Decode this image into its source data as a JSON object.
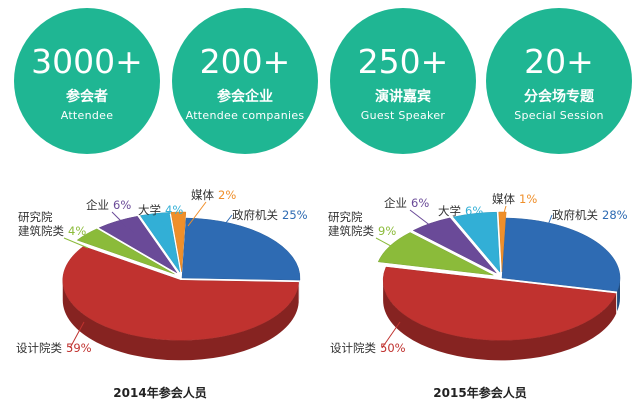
{
  "stats": [
    {
      "number": "3000+",
      "label_cn": "参会者",
      "label_en": "Attendee"
    },
    {
      "number": "200+",
      "label_cn": "参会企业",
      "label_en": "Attendee  companies"
    },
    {
      "number": "250+",
      "label_cn": "演讲嘉宾",
      "label_en": "Guest  Speaker"
    },
    {
      "number": "20+",
      "label_cn": "分会场专题",
      "label_en": "Special  Session"
    }
  ],
  "colors": {
    "circle": "#1fb693",
    "gov": "#2e6bb3",
    "design": "#c0322f",
    "research": "#8bbb3a",
    "enterprise": "#6a4a98",
    "university": "#32afd6",
    "media": "#ef8f2a"
  },
  "chart_data": [
    {
      "type": "pie",
      "title": "2014年参会人员",
      "slices": [
        {
          "label": "政府机关",
          "value": 25,
          "value_label": "25%"
        },
        {
          "label": "设计院类",
          "value": 59,
          "value_label": "59%"
        },
        {
          "label": "研究院 建筑院类",
          "label_line1": "研究院",
          "label_line2": "建筑院类",
          "value": 4,
          "value_label": "4%"
        },
        {
          "label": "企业",
          "value": 6,
          "value_label": "6%"
        },
        {
          "label": "大学",
          "value": 4,
          "value_label": "4%"
        },
        {
          "label": "媒体",
          "value": 2,
          "value_label": "2%"
        }
      ]
    },
    {
      "type": "pie",
      "title": "2015年参会人员",
      "slices": [
        {
          "label": "政府机关",
          "value": 28,
          "value_label": "28%"
        },
        {
          "label": "设计院类",
          "value": 50,
          "value_label": "50%"
        },
        {
          "label": "研究院 建筑院类",
          "label_line1": "研究院",
          "label_line2": "建筑院类",
          "value": 9,
          "value_label": "9%"
        },
        {
          "label": "企业",
          "value": 6,
          "value_label": "6%"
        },
        {
          "label": "大学",
          "value": 6,
          "value_label": "6%"
        },
        {
          "label": "媒体",
          "value": 1,
          "value_label": "1%"
        }
      ]
    }
  ]
}
